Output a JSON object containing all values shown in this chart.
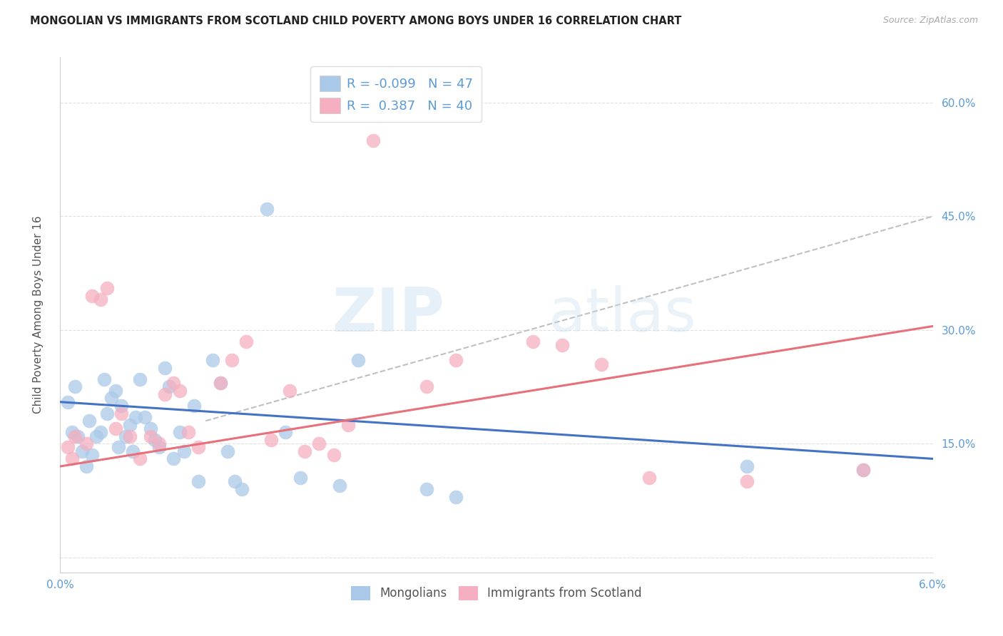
{
  "title": "MONGOLIAN VS IMMIGRANTS FROM SCOTLAND CHILD POVERTY AMONG BOYS UNDER 16 CORRELATION CHART",
  "source": "Source: ZipAtlas.com",
  "ylabel_left": "Child Poverty Among Boys Under 16",
  "xlim": [
    0.0,
    6.0
  ],
  "ylim": [
    -2.0,
    66.0
  ],
  "right_yticks": [
    0.0,
    15.0,
    30.0,
    45.0,
    60.0
  ],
  "right_yticklabels": [
    "",
    "15.0%",
    "30.0%",
    "45.0%",
    "60.0%"
  ],
  "mongolians_color": "#aac9e8",
  "scotland_color": "#f5afc0",
  "trendline_blue": "#4472c4",
  "trendline_pink": "#e8707a",
  "trendline_dashed_color": "#c0c0c0",
  "mongolians_x": [
    0.05,
    0.08,
    0.1,
    0.12,
    0.15,
    0.18,
    0.2,
    0.22,
    0.25,
    0.28,
    0.3,
    0.32,
    0.35,
    0.38,
    0.4,
    0.42,
    0.45,
    0.48,
    0.5,
    0.52,
    0.55,
    0.58,
    0.62,
    0.65,
    0.68,
    0.72,
    0.75,
    0.78,
    0.82,
    0.85,
    0.92,
    0.95,
    1.05,
    1.1,
    1.15,
    1.2,
    1.25,
    1.42,
    1.55,
    1.65,
    1.92,
    2.05,
    2.52,
    2.72,
    4.72,
    5.52
  ],
  "mongolians_y": [
    20.5,
    16.5,
    22.5,
    16.0,
    14.0,
    12.0,
    18.0,
    13.5,
    16.0,
    16.5,
    23.5,
    19.0,
    21.0,
    22.0,
    14.5,
    20.0,
    16.0,
    17.5,
    14.0,
    18.5,
    23.5,
    18.5,
    17.0,
    15.5,
    14.5,
    25.0,
    22.5,
    13.0,
    16.5,
    14.0,
    20.0,
    10.0,
    26.0,
    23.0,
    14.0,
    10.0,
    9.0,
    46.0,
    16.5,
    10.5,
    9.5,
    26.0,
    9.0,
    8.0,
    12.0,
    11.5
  ],
  "scotland_x": [
    0.05,
    0.08,
    0.1,
    0.18,
    0.22,
    0.28,
    0.32,
    0.38,
    0.42,
    0.48,
    0.55,
    0.62,
    0.68,
    0.72,
    0.78,
    0.82,
    0.88,
    0.95,
    1.1,
    1.18,
    1.28,
    1.45,
    1.58,
    1.68,
    1.78,
    1.88,
    1.98,
    2.15,
    2.52,
    2.72,
    3.25,
    3.45,
    3.72,
    4.05,
    4.72,
    5.52
  ],
  "scotland_y": [
    14.5,
    13.0,
    16.0,
    15.0,
    34.5,
    34.0,
    35.5,
    17.0,
    19.0,
    16.0,
    13.0,
    16.0,
    15.0,
    21.5,
    23.0,
    22.0,
    16.5,
    14.5,
    23.0,
    26.0,
    28.5,
    15.5,
    22.0,
    14.0,
    15.0,
    13.5,
    17.5,
    55.0,
    22.5,
    26.0,
    28.5,
    28.0,
    25.5,
    10.5,
    10.0,
    11.5
  ],
  "blue_trend_x0": 0.0,
  "blue_trend_y0": 20.5,
  "blue_trend_x1": 6.0,
  "blue_trend_y1": 13.0,
  "pink_trend_x0": 0.0,
  "pink_trend_y0": 12.0,
  "pink_trend_x1": 6.0,
  "pink_trend_y1": 30.5,
  "dashed_x0": 1.0,
  "dashed_y0": 18.0,
  "dashed_x1": 6.0,
  "dashed_y1": 45.0,
  "watermark_zip": "ZIP",
  "watermark_atlas": "atlas",
  "background_color": "#ffffff",
  "grid_color": "#e0e0e0",
  "tick_color": "#5b9bd5",
  "text_color": "#555555",
  "title_color": "#222222"
}
